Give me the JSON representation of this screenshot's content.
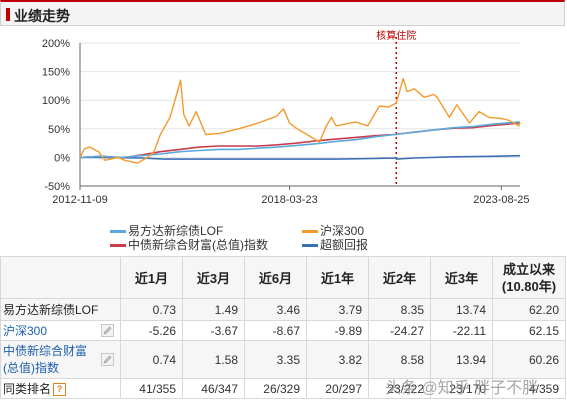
{
  "header": {
    "title": "业绩走势"
  },
  "chart_data": {
    "type": "line",
    "ylim": [
      -50,
      200
    ],
    "y_ticks": [
      "200%",
      "150%",
      "100%",
      "50%",
      "0%",
      "-50%"
    ],
    "y_tick_values": [
      200,
      150,
      100,
      50,
      0,
      -50
    ],
    "x_ticks": [
      "2012-11-09",
      "2018-03-23",
      "2023-08-25"
    ],
    "x_tick_dates": [
      "2012-11-09",
      "2018-03-23",
      "2023-08-25"
    ],
    "x_range": [
      "2012-11-09",
      "2024-02-15"
    ],
    "annotation": {
      "label": "核算住院",
      "date": "2020-12-15"
    },
    "series": [
      {
        "name": "易方达新综债LOF",
        "color": "#5aaae0",
        "points": [
          [
            "2012-11-09",
            0
          ],
          [
            "2013-06-01",
            2
          ],
          [
            "2013-12-01",
            0
          ],
          [
            "2014-06-01",
            3
          ],
          [
            "2014-12-01",
            6
          ],
          [
            "2015-06-01",
            10
          ],
          [
            "2015-12-01",
            12
          ],
          [
            "2016-06-01",
            14
          ],
          [
            "2016-12-01",
            14
          ],
          [
            "2017-06-01",
            16
          ],
          [
            "2017-12-01",
            18
          ],
          [
            "2018-06-01",
            21
          ],
          [
            "2018-12-01",
            24
          ],
          [
            "2019-06-01",
            28
          ],
          [
            "2019-12-01",
            31
          ],
          [
            "2020-06-01",
            36
          ],
          [
            "2020-12-01",
            40
          ],
          [
            "2021-06-01",
            44
          ],
          [
            "2021-12-01",
            48
          ],
          [
            "2022-06-01",
            52
          ],
          [
            "2022-12-01",
            54
          ],
          [
            "2023-06-01",
            58
          ],
          [
            "2024-02-15",
            62
          ]
        ]
      },
      {
        "name": "沪深300",
        "color": "#f39a2e",
        "points": [
          [
            "2012-11-09",
            0
          ],
          [
            "2012-12-20",
            15
          ],
          [
            "2013-02-10",
            18
          ],
          [
            "2013-05-01",
            10
          ],
          [
            "2013-07-01",
            -5
          ],
          [
            "2013-11-01",
            0
          ],
          [
            "2014-01-01",
            -5
          ],
          [
            "2014-05-01",
            -10
          ],
          [
            "2014-08-01",
            0
          ],
          [
            "2014-10-01",
            10
          ],
          [
            "2014-12-01",
            40
          ],
          [
            "2015-03-01",
            70
          ],
          [
            "2015-05-01",
            110
          ],
          [
            "2015-06-08",
            135
          ],
          [
            "2015-07-08",
            75
          ],
          [
            "2015-08-26",
            55
          ],
          [
            "2015-11-01",
            80
          ],
          [
            "2016-01-29",
            40
          ],
          [
            "2016-06-01",
            42
          ],
          [
            "2016-12-01",
            50
          ],
          [
            "2017-06-01",
            60
          ],
          [
            "2017-11-22",
            72
          ],
          [
            "2018-01-24",
            85
          ],
          [
            "2018-03-23",
            60
          ],
          [
            "2018-06-01",
            50
          ],
          [
            "2018-09-01",
            40
          ],
          [
            "2018-12-28",
            27
          ],
          [
            "2019-03-01",
            55
          ],
          [
            "2019-04-19",
            70
          ],
          [
            "2019-06-01",
            55
          ],
          [
            "2019-12-01",
            62
          ],
          [
            "2020-03-23",
            55
          ],
          [
            "2020-07-10",
            90
          ],
          [
            "2020-10-01",
            88
          ],
          [
            "2020-12-15",
            95
          ],
          [
            "2021-02-18",
            138
          ],
          [
            "2021-03-25",
            115
          ],
          [
            "2021-06-01",
            120
          ],
          [
            "2021-09-01",
            105
          ],
          [
            "2021-12-01",
            110
          ],
          [
            "2022-01-01",
            105
          ],
          [
            "2022-04-26",
            70
          ],
          [
            "2022-07-04",
            92
          ],
          [
            "2022-10-31",
            60
          ],
          [
            "2023-01-28",
            80
          ],
          [
            "2023-05-01",
            70
          ],
          [
            "2023-08-25",
            68
          ],
          [
            "2023-11-01",
            65
          ],
          [
            "2024-02-05",
            55
          ],
          [
            "2024-02-15",
            62
          ]
        ]
      },
      {
        "name": "中债新综合财富(总值)指数",
        "color": "#c93c4a",
        "points": [
          [
            "2012-11-09",
            0
          ],
          [
            "2013-06-01",
            2
          ],
          [
            "2013-12-01",
            -1
          ],
          [
            "2014-06-01",
            4
          ],
          [
            "2014-12-01",
            10
          ],
          [
            "2015-06-01",
            14
          ],
          [
            "2015-12-01",
            18
          ],
          [
            "2016-06-01",
            20
          ],
          [
            "2016-12-01",
            20
          ],
          [
            "2017-06-01",
            20
          ],
          [
            "2017-12-01",
            22
          ],
          [
            "2018-06-01",
            25
          ],
          [
            "2018-12-01",
            29
          ],
          [
            "2019-06-01",
            32
          ],
          [
            "2019-12-01",
            35
          ],
          [
            "2020-06-01",
            38
          ],
          [
            "2020-12-01",
            40
          ],
          [
            "2021-06-01",
            44
          ],
          [
            "2021-12-01",
            48
          ],
          [
            "2022-06-01",
            51
          ],
          [
            "2022-12-01",
            52
          ],
          [
            "2023-06-01",
            56
          ],
          [
            "2024-02-15",
            60
          ]
        ]
      },
      {
        "name": "超额回报",
        "color": "#3a6fb4",
        "points": [
          [
            "2012-11-09",
            0
          ],
          [
            "2013-06-01",
            0
          ],
          [
            "2014-06-01",
            -1
          ],
          [
            "2015-01-01",
            -3
          ],
          [
            "2015-06-01",
            -3
          ],
          [
            "2016-06-01",
            -3
          ],
          [
            "2017-06-01",
            -3
          ],
          [
            "2018-06-01",
            -3
          ],
          [
            "2019-06-01",
            -3
          ],
          [
            "2020-06-01",
            -2
          ],
          [
            "2020-12-14",
            -1
          ],
          [
            "2020-12-15",
            -3
          ],
          [
            "2021-06-01",
            -1
          ],
          [
            "2022-06-01",
            1
          ],
          [
            "2023-06-01",
            2
          ],
          [
            "2024-02-15",
            3
          ]
        ]
      }
    ]
  },
  "table": {
    "headers": [
      "",
      "近1月",
      "近3月",
      "近6月",
      "近1年",
      "近2年",
      "近3年",
      "成立以来",
      "(10.80年)"
    ],
    "rows": [
      {
        "name": "易方达新综债LOF",
        "values": [
          "0.73",
          "1.49",
          "3.46",
          "3.79",
          "8.35",
          "13.74",
          "62.20"
        ]
      },
      {
        "name": "沪深300",
        "values": [
          "-5.26",
          "-3.67",
          "-8.67",
          "-9.89",
          "-24.27",
          "-22.11",
          "62.15"
        ]
      },
      {
        "name": "中债新综合财富",
        "name2": "(总值)指数",
        "values": [
          "0.74",
          "1.58",
          "3.35",
          "3.82",
          "8.58",
          "13.94",
          "60.26"
        ]
      },
      {
        "name": "同类排名",
        "badge": "?",
        "values": [
          "41/355",
          "46/347",
          "26/329",
          "20/297",
          "23/222",
          "23/170",
          "4/359"
        ]
      }
    ]
  },
  "watermark": "头条 @知乎 胖子不胖",
  "icons": {
    "edit": "edit-icon",
    "help": "question-badge-icon"
  }
}
